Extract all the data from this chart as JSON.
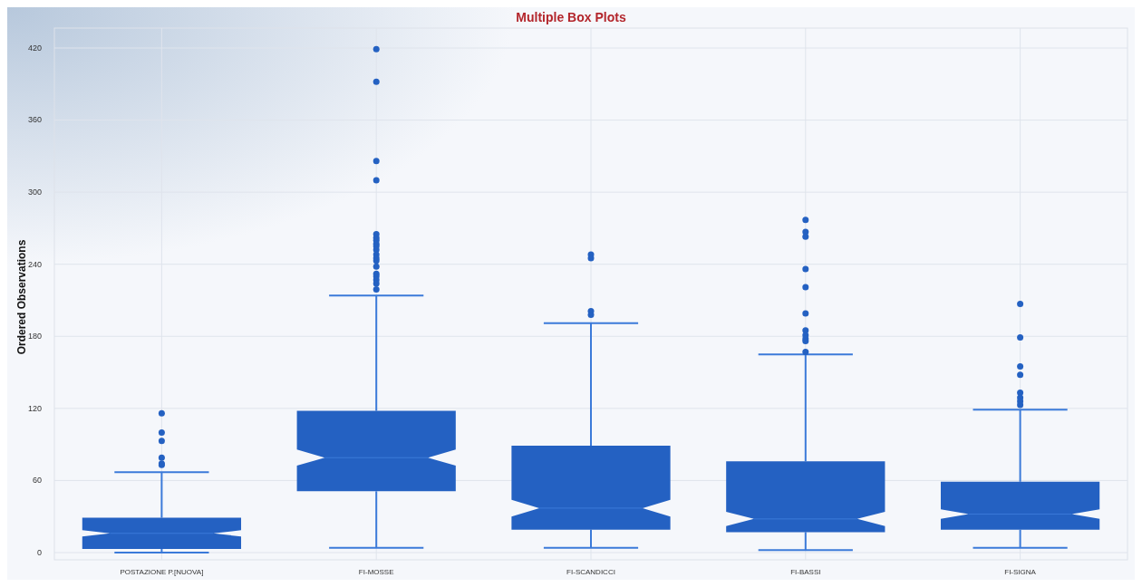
{
  "chart_data": {
    "type": "box",
    "title": "Multiple Box Plots",
    "ylabel": "Ordered Observations",
    "categories": [
      "POSTAZIONE P.[NUOVA]",
      "FI-MOSSE",
      "FI-SCANDICCI",
      "FI-BASSI",
      "FI-SIGNA"
    ],
    "ylim": [
      0,
      420
    ],
    "yticks": [
      0,
      60,
      120,
      180,
      240,
      300,
      360,
      420
    ],
    "grid": true,
    "series": [
      {
        "color": "#2461c2",
        "boxes": [
          {
            "low": 0,
            "q1": 3,
            "median": 16,
            "q3": 29,
            "high": 67,
            "outliers": [
              116,
              100,
              93,
              79,
              74,
              73
            ]
          },
          {
            "low": 4,
            "q1": 51,
            "median": 79,
            "q3": 118,
            "high": 214,
            "outliers": [
              419,
              392,
              326,
              310,
              265,
              262,
              260,
              257,
              255,
              252,
              248,
              245,
              243,
              238,
              232,
              230,
              227,
              224,
              219
            ]
          },
          {
            "low": 4,
            "q1": 19,
            "median": 37,
            "q3": 89,
            "high": 191,
            "outliers": [
              248,
              245,
              201,
              198
            ]
          },
          {
            "low": 2,
            "q1": 17,
            "median": 28,
            "q3": 76,
            "high": 165,
            "outliers": [
              277,
              267,
              263,
              236,
              221,
              199,
              185,
              181,
              178,
              176,
              167
            ]
          },
          {
            "low": 4,
            "q1": 19,
            "median": 32,
            "q3": 59,
            "high": 119,
            "outliers": [
              207,
              179,
              155,
              148,
              133,
              129,
              126,
              123
            ]
          }
        ]
      }
    ]
  }
}
